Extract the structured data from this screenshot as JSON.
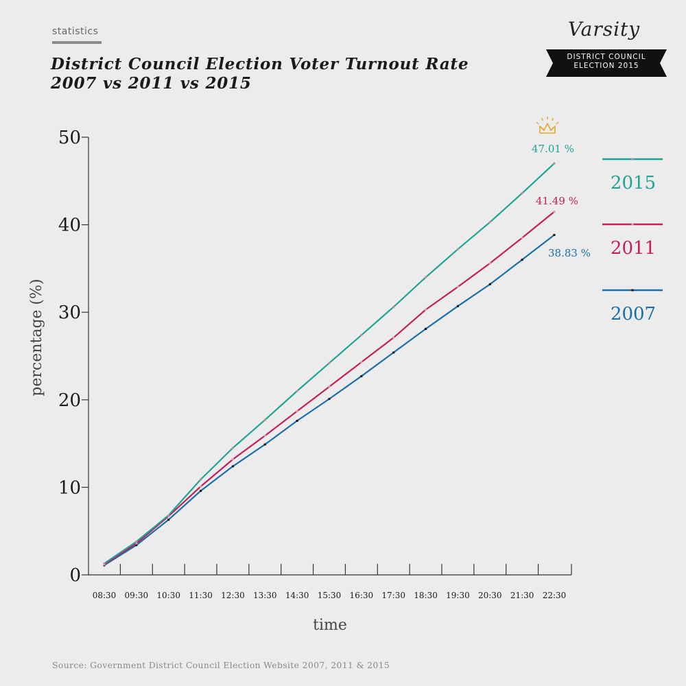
{
  "header": {
    "category": "statistics",
    "title_line1": "District Council Election Voter Turnout Rate",
    "title_line2": "2007 vs 2011 vs 2015"
  },
  "branding": {
    "logo_text": "Varsity",
    "ribbon_line1": "DISTRICT COUNCIL",
    "ribbon_line2": "ELECTION 2015"
  },
  "source": "Source: Government District Council Election Website 2007, 2011 & 2015",
  "colors": {
    "s2015": "#1fa393",
    "s2011": "#c41e5c",
    "s2007": "#1a6fa8",
    "crown": "#e6a62a"
  },
  "icons": {
    "winner": "crown-icon"
  },
  "chart_data": {
    "type": "line",
    "xlabel": "time",
    "ylabel": "percentage (%)",
    "ylim": [
      0,
      50
    ],
    "yticks": [
      0,
      10,
      20,
      30,
      40,
      50
    ],
    "categories": [
      "08:30",
      "09:30",
      "10:30",
      "11:30",
      "12:30",
      "13:30",
      "14:30",
      "15:30",
      "16:30",
      "17:30",
      "18:30",
      "19:30",
      "20:30",
      "21:30",
      "22:30"
    ],
    "legend_placement": "right",
    "series": [
      {
        "name": "2015",
        "color": "#1fa393",
        "values": [
          1.3,
          3.8,
          6.8,
          10.9,
          14.5,
          17.7,
          21.0,
          24.2,
          27.4,
          30.6,
          34.0,
          37.2,
          40.3,
          43.6,
          47.01
        ],
        "end_label": "47.01 %"
      },
      {
        "name": "2011",
        "color": "#c41e5c",
        "values": [
          1.2,
          3.6,
          6.7,
          10.1,
          13.2,
          15.9,
          18.7,
          21.5,
          24.3,
          27.1,
          30.3,
          32.9,
          35.6,
          38.5,
          41.49
        ],
        "end_label": "41.49 %"
      },
      {
        "name": "2007",
        "color": "#1a6fa8",
        "values": [
          1.1,
          3.4,
          6.3,
          9.6,
          12.4,
          14.9,
          17.6,
          20.1,
          22.7,
          25.4,
          28.1,
          30.7,
          33.2,
          36.0,
          38.83
        ],
        "end_label": "38.83 %"
      }
    ]
  }
}
